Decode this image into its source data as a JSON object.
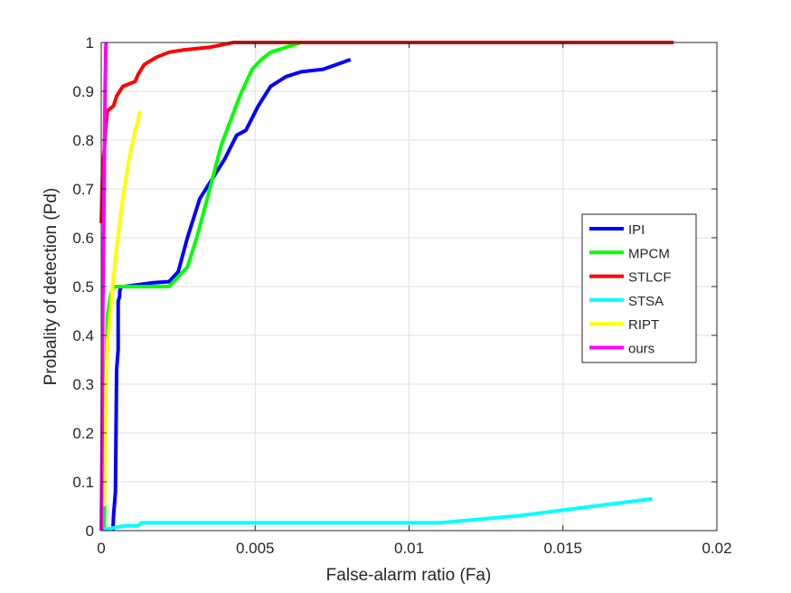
{
  "chart_data": {
    "type": "line",
    "title": "",
    "xlabel": "False-alarm ratio (Fa)",
    "ylabel": "Probality of detection (Pd)",
    "xlim": [
      0,
      0.02
    ],
    "ylim": [
      0,
      1
    ],
    "xticks": [
      0,
      0.005,
      0.01,
      0.015,
      0.02
    ],
    "xtick_labels": [
      "0",
      "0.005",
      "0.01",
      "0.015",
      "0.02"
    ],
    "yticks": [
      0,
      0.1,
      0.2,
      0.3,
      0.4,
      0.5,
      0.6,
      0.7,
      0.8,
      0.9,
      1
    ],
    "ytick_labels": [
      "0",
      "0.1",
      "0.2",
      "0.3",
      "0.4",
      "0.5",
      "0.6",
      "0.7",
      "0.8",
      "0.9",
      "1"
    ],
    "grid": true,
    "legend_position": "right",
    "series": [
      {
        "name": "IPI",
        "color": "#0000ff",
        "x": [
          0.00038,
          0.0004,
          0.00046,
          0.0005,
          0.00055,
          0.00055,
          0.0006,
          0.0006,
          0.00065,
          0.00065,
          0.00075,
          0.0017,
          0.0022,
          0.0025,
          0.0028,
          0.0032,
          0.0035,
          0.004,
          0.0044,
          0.0047,
          0.0051,
          0.0055,
          0.006,
          0.0065,
          0.0072,
          0.0081
        ],
        "y": [
          0.0,
          0.03,
          0.08,
          0.33,
          0.37,
          0.47,
          0.48,
          0.49,
          0.5,
          0.5,
          0.5,
          0.508,
          0.51,
          0.53,
          0.6,
          0.68,
          0.71,
          0.76,
          0.81,
          0.82,
          0.87,
          0.91,
          0.93,
          0.94,
          0.945,
          0.965
        ]
      },
      {
        "name": "MPCM",
        "color": "#00ff00",
        "x": [
          0.0001,
          0.0001,
          0.00015,
          0.0002,
          0.0003,
          0.0004,
          0.0022,
          0.0025,
          0.0028,
          0.0031,
          0.0034,
          0.0039,
          0.0042,
          0.0045,
          0.0049,
          0.0052,
          0.0055,
          0.006,
          0.0065,
          0.0068
        ],
        "y": [
          0.0,
          0.03,
          0.3,
          0.44,
          0.48,
          0.5,
          0.5,
          0.52,
          0.54,
          0.6,
          0.67,
          0.79,
          0.84,
          0.89,
          0.945,
          0.965,
          0.98,
          0.99,
          1.0,
          1.0
        ]
      },
      {
        "name": "STLCF",
        "color": "#ff0000",
        "x": [
          0.0,
          5e-05,
          0.0001,
          0.00015,
          0.0002,
          0.0003,
          0.0004,
          0.0005,
          0.0007,
          0.0009,
          0.0011,
          0.0012,
          0.0014,
          0.0018,
          0.0022,
          0.0027,
          0.0035,
          0.0043,
          0.006,
          0.009,
          0.013,
          0.0186
        ],
        "y": [
          0.63,
          0.75,
          0.78,
          0.83,
          0.86,
          0.865,
          0.87,
          0.89,
          0.91,
          0.915,
          0.92,
          0.935,
          0.955,
          0.97,
          0.98,
          0.985,
          0.99,
          1.0,
          1.0,
          1.0,
          1.0,
          1.0
        ]
      },
      {
        "name": "STSA",
        "color": "#00ffff",
        "x": [
          0.0001,
          0.0003,
          0.0005,
          0.0008,
          0.0012,
          0.0013,
          0.002,
          0.011,
          0.0135,
          0.016,
          0.0179
        ],
        "y": [
          0.002,
          0.004,
          0.007,
          0.01,
          0.01,
          0.016,
          0.016,
          0.016,
          0.03,
          0.05,
          0.065
        ]
      },
      {
        "name": "RIPT",
        "color": "#ffff00",
        "x": [
          0.0001,
          0.00015,
          0.0002,
          0.0003,
          0.0004,
          0.0005,
          0.0006,
          0.0007,
          0.0008,
          0.0009,
          0.001,
          0.0011,
          0.0012,
          0.00125
        ],
        "y": [
          0.05,
          0.28,
          0.38,
          0.45,
          0.52,
          0.58,
          0.63,
          0.68,
          0.72,
          0.76,
          0.79,
          0.82,
          0.84,
          0.86
        ]
      },
      {
        "name": "ours",
        "color": "#ff00ff",
        "x": [
          0.0,
          3e-05,
          5e-05,
          7e-05,
          0.0001,
          0.00013,
          0.00015,
          0.00016
        ],
        "y": [
          0.0,
          0.2,
          0.45,
          0.55,
          0.75,
          0.92,
          0.99,
          1.0
        ]
      }
    ]
  }
}
